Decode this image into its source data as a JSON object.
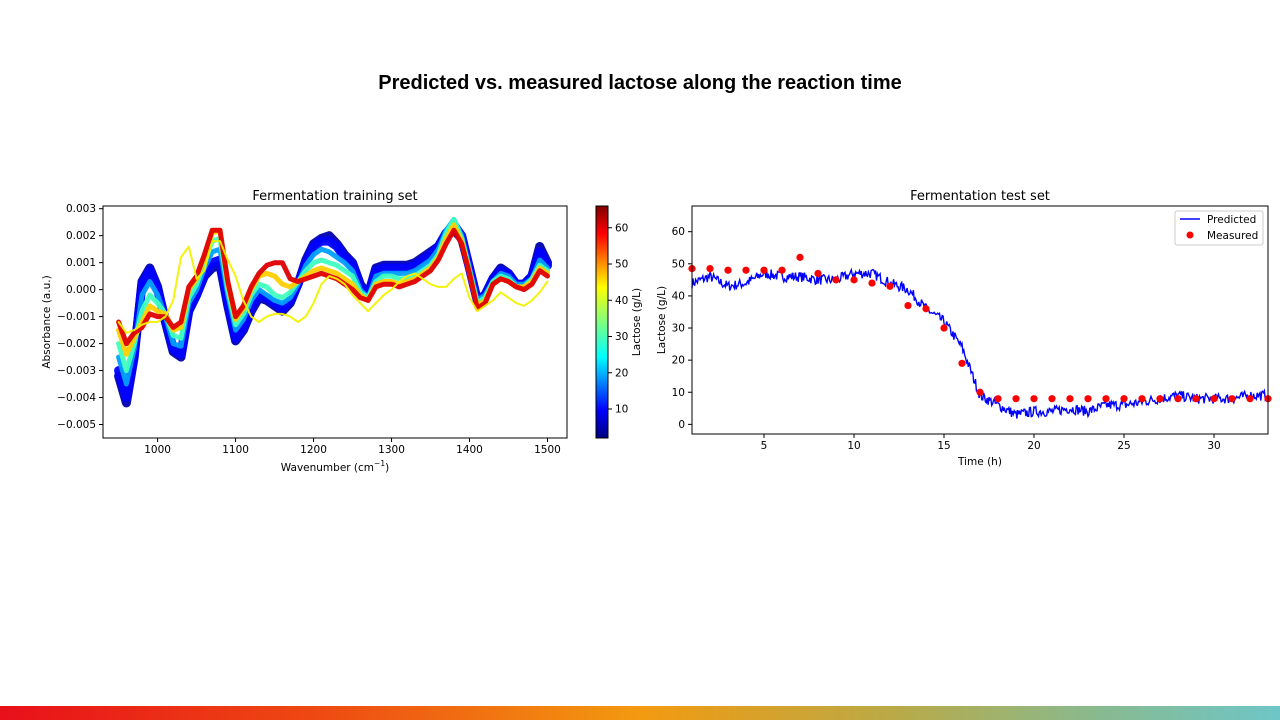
{
  "slide": {
    "title": "Predicted vs. measured lactose along the reaction time"
  },
  "chart_data": [
    {
      "type": "line",
      "title": "Fermentation training set",
      "xlabel": "Wavenumber (cm",
      "xlabel_sup": "−1",
      "xlabel_end": ")",
      "ylabel": "Absorbance (a.u.)",
      "xlim": [
        930,
        1525
      ],
      "ylim": [
        -0.0055,
        0.0031
      ],
      "xticks": [
        1000,
        1100,
        1200,
        1300,
        1400,
        1500
      ],
      "xtick_labels": [
        "1000",
        "1100",
        "1200",
        "1300",
        "1400",
        "1500"
      ],
      "yticks": [
        -0.005,
        -0.004,
        -0.003,
        -0.002,
        -0.001,
        0.0,
        0.001,
        0.002,
        0.003
      ],
      "ytick_labels": [
        "−0.005",
        "−0.004",
        "−0.003",
        "−0.002",
        "−0.001",
        "0.000",
        "0.001",
        "0.002",
        "0.003"
      ],
      "x": [
        950,
        960,
        970,
        980,
        990,
        1000,
        1010,
        1020,
        1030,
        1040,
        1050,
        1060,
        1070,
        1080,
        1090,
        1100,
        1110,
        1120,
        1130,
        1140,
        1150,
        1160,
        1170,
        1180,
        1190,
        1200,
        1210,
        1220,
        1230,
        1240,
        1250,
        1260,
        1270,
        1280,
        1290,
        1300,
        1310,
        1320,
        1330,
        1340,
        1350,
        1360,
        1370,
        1380,
        1390,
        1400,
        1410,
        1420,
        1430,
        1440,
        1450,
        1460,
        1470,
        1480,
        1490,
        1500
      ],
      "series": [
        {
          "lactose": 5,
          "values": [
            -0.0032,
            -0.0042,
            -0.0025,
            0.0003,
            0.0008,
            0.0001,
            -0.0012,
            -0.0023,
            -0.0025,
            -0.0008,
            -0.0002,
            0.0005,
            0.0008,
            0.0009,
            -0.0006,
            -0.0019,
            -0.0015,
            -0.0008,
            -0.0003,
            -0.0004,
            -0.0006,
            -0.0008,
            -0.0005,
            0.0002,
            0.0011,
            0.0017,
            0.0019,
            0.002,
            0.0017,
            0.0013,
            0.001,
            0.0002,
            -0.0002,
            0.0008,
            0.0009,
            0.0009,
            0.0009,
            0.0009,
            0.001,
            0.0012,
            0.0014,
            0.0016,
            0.002,
            0.0022,
            0.0019,
            0.0008,
            -0.0004,
            -0.0002,
            0.0004,
            0.0008,
            0.0006,
            0.0002,
            0.0002,
            0.0005,
            0.0016,
            0.001
          ]
        },
        {
          "lactose": 10,
          "values": [
            -0.003,
            -0.004,
            -0.0024,
            0.0002,
            0.0007,
            0.0,
            -0.0011,
            -0.0022,
            -0.0024,
            -0.0007,
            -0.0002,
            0.0006,
            0.001,
            0.0011,
            -0.0005,
            -0.0018,
            -0.0014,
            -0.0006,
            -0.0002,
            -0.0003,
            -0.0005,
            -0.0007,
            -0.0004,
            0.0002,
            0.001,
            0.0016,
            0.0018,
            0.0018,
            0.0016,
            0.0012,
            0.0009,
            0.0001,
            -0.0002,
            0.0007,
            0.0008,
            0.0008,
            0.0008,
            0.0008,
            0.0009,
            0.0011,
            0.0013,
            0.0016,
            0.0021,
            0.0024,
            0.002,
            0.0008,
            -0.0004,
            -0.0002,
            0.0004,
            0.0007,
            0.0006,
            0.0002,
            0.0002,
            0.0005,
            0.0014,
            0.0009
          ]
        },
        {
          "lactose": 20,
          "values": [
            -0.0025,
            -0.0035,
            -0.0022,
            -0.0002,
            0.0003,
            -0.0002,
            -0.001,
            -0.002,
            -0.0021,
            -0.0005,
            0.0,
            0.0008,
            0.0014,
            0.0015,
            -0.0002,
            -0.0015,
            -0.0011,
            -0.0004,
            0.0,
            -0.0002,
            -0.0004,
            -0.0005,
            -0.0003,
            0.0002,
            0.0009,
            0.0013,
            0.0015,
            0.0014,
            0.0012,
            0.001,
            0.0007,
            0.0,
            -0.0003,
            0.0005,
            0.0006,
            0.0006,
            0.0006,
            0.0006,
            0.0007,
            0.0009,
            0.0011,
            0.0015,
            0.0022,
            0.0026,
            0.002,
            0.0008,
            -0.0004,
            -0.0002,
            0.0003,
            0.0006,
            0.0005,
            0.0002,
            0.0002,
            0.0004,
            0.0011,
            0.0008
          ]
        },
        {
          "lactose": 30,
          "values": [
            -0.002,
            -0.003,
            -0.002,
            -0.0008,
            -0.0002,
            -0.0005,
            -0.0009,
            -0.0017,
            -0.0018,
            -0.0003,
            0.0002,
            0.001,
            0.0018,
            0.0019,
            0.0,
            -0.0013,
            -0.0009,
            -0.0002,
            0.0002,
            0.0001,
            -0.0002,
            -0.0003,
            -0.0001,
            0.0003,
            0.0007,
            0.001,
            0.0011,
            0.001,
            0.0009,
            0.0007,
            0.0005,
            -0.0001,
            -0.0003,
            0.0003,
            0.0005,
            0.0005,
            0.0004,
            0.0004,
            0.0005,
            0.0007,
            0.0009,
            0.0013,
            0.0021,
            0.0026,
            0.0019,
            0.0007,
            -0.0005,
            -0.0003,
            0.0003,
            0.0005,
            0.0004,
            0.0001,
            0.0001,
            0.0004,
            0.0009,
            0.0007
          ]
        },
        {
          "lactose": 45,
          "values": [
            -0.0015,
            -0.0024,
            -0.0018,
            -0.0012,
            -0.0006,
            -0.0008,
            -0.0009,
            -0.0015,
            -0.0014,
            0.0,
            0.0004,
            0.0012,
            0.0021,
            0.0022,
            0.0002,
            -0.0011,
            -0.0007,
            0.0,
            0.0005,
            0.0006,
            0.0005,
            0.0002,
            0.0001,
            0.0003,
            0.0005,
            0.0007,
            0.0008,
            0.0007,
            0.0006,
            0.0004,
            0.0002,
            -0.0002,
            -0.0004,
            0.0002,
            0.0003,
            0.0003,
            0.0002,
            0.0003,
            0.0004,
            0.0006,
            0.0008,
            0.0012,
            0.0019,
            0.0024,
            0.0018,
            0.0006,
            -0.0006,
            -0.0004,
            0.0002,
            0.0004,
            0.0003,
            0.0001,
            0.0001,
            0.0003,
            0.0008,
            0.0006
          ]
        },
        {
          "lactose": 60,
          "values": [
            -0.0012,
            -0.002,
            -0.0016,
            -0.0014,
            -0.0009,
            -0.001,
            -0.001,
            -0.0014,
            -0.0012,
            0.0001,
            0.0005,
            0.0013,
            0.0022,
            0.0022,
            0.0003,
            -0.001,
            -0.0006,
            0.0001,
            0.0006,
            0.0009,
            0.001,
            0.001,
            0.0004,
            0.0003,
            0.0004,
            0.0005,
            0.0006,
            0.0005,
            0.0004,
            0.0002,
            0.0,
            -0.0003,
            -0.0004,
            0.0001,
            0.0002,
            0.0002,
            0.0001,
            0.0002,
            0.0003,
            0.0005,
            0.0007,
            0.0011,
            0.0017,
            0.0022,
            0.0017,
            0.0006,
            -0.0007,
            -0.0005,
            0.0002,
            0.0004,
            0.0003,
            0.0001,
            0.0,
            0.0002,
            0.0007,
            0.0005
          ]
        },
        {
          "lactose": 42,
          "values": [
            -0.0012,
            -0.0016,
            -0.0015,
            -0.0013,
            -0.0012,
            -0.0012,
            -0.001,
            -0.0004,
            0.0012,
            0.0016,
            0.0004,
            0.0007,
            0.0018,
            0.0018,
            0.0011,
            0.0005,
            -0.0004,
            -0.001,
            -0.0012,
            -0.001,
            -0.0009,
            -0.0009,
            -0.001,
            -0.0012,
            -0.001,
            -0.0005,
            0.0002,
            0.0005,
            0.0004,
            0.0002,
            -0.0002,
            -0.0005,
            -0.0008,
            -0.0005,
            -0.0002,
            0.0,
            0.0003,
            0.0005,
            0.0006,
            0.0004,
            0.0002,
            0.0001,
            0.0001,
            0.0004,
            0.0006,
            -0.0003,
            -0.0008,
            -0.0006,
            -0.0004,
            -0.0001,
            -0.0003,
            -0.0005,
            -0.0006,
            -0.0004,
            -0.0001,
            0.0003
          ]
        }
      ],
      "colorbar": {
        "label": "Lactose (g/L)",
        "min": 2,
        "max": 66,
        "ticks": [
          10,
          20,
          30,
          40,
          50,
          60
        ],
        "tick_labels": [
          "10",
          "20",
          "30",
          "40",
          "50",
          "60"
        ],
        "colormap": "jet"
      }
    },
    {
      "type": "line+scatter",
      "title": "Fermentation test set",
      "xlabel": "Time (h)",
      "ylabel": "Lactose (g/L)",
      "xlim": [
        1,
        33
      ],
      "ylim": [
        -3,
        68
      ],
      "xticks": [
        5,
        10,
        15,
        20,
        25,
        30
      ],
      "xtick_labels": [
        "5",
        "10",
        "15",
        "20",
        "25",
        "30"
      ],
      "yticks": [
        0,
        10,
        20,
        30,
        40,
        50,
        60
      ],
      "ytick_labels": [
        "0",
        "10",
        "20",
        "30",
        "40",
        "50",
        "60"
      ],
      "legend": {
        "placement": "top-right"
      },
      "series": [
        {
          "name": "Predicted",
          "kind": "line",
          "color": "#0000ff",
          "x": [
            1,
            2,
            3,
            4,
            5,
            6,
            7,
            8,
            9,
            10,
            11,
            12,
            13,
            14,
            15,
            16,
            17,
            18,
            19,
            20,
            21,
            22,
            23,
            24,
            25,
            26,
            27,
            28,
            29,
            30,
            31,
            32,
            33
          ],
          "values": [
            44,
            46,
            43,
            44,
            47,
            46,
            46,
            45,
            45,
            47,
            47,
            44,
            42,
            36,
            32,
            24,
            9,
            6,
            3,
            4,
            4,
            5,
            4,
            6,
            6,
            7,
            8,
            9,
            8,
            8,
            8,
            9,
            9
          ]
        },
        {
          "name": "Measured",
          "kind": "scatter",
          "color": "#ff0000",
          "x": [
            1,
            2,
            3,
            4,
            5,
            6,
            7,
            8,
            9,
            10,
            11,
            12,
            13,
            14,
            15,
            16,
            17,
            18,
            19,
            20,
            21,
            22,
            23,
            24,
            25,
            26,
            27,
            28,
            29,
            30,
            31,
            32,
            33
          ],
          "values": [
            48.5,
            48.5,
            48,
            48,
            48,
            48,
            52,
            47,
            45,
            45,
            44,
            43,
            37,
            36,
            30,
            19,
            10,
            8,
            8,
            8,
            8,
            8,
            8,
            8,
            8,
            8,
            8,
            8,
            8,
            8,
            8,
            8,
            8
          ]
        }
      ]
    }
  ]
}
